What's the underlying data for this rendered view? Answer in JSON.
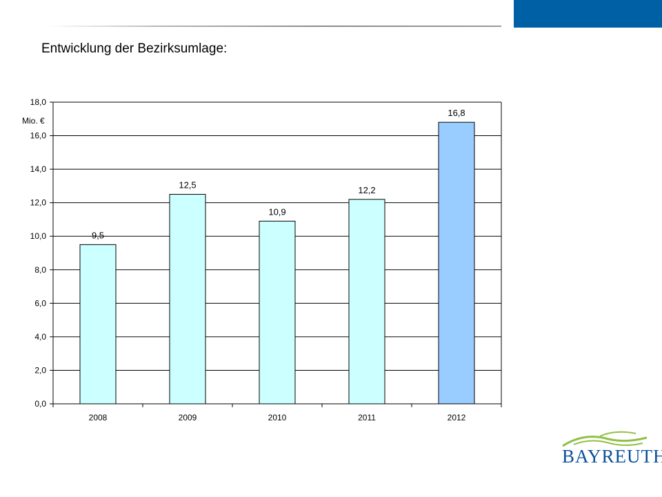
{
  "slide": {
    "title": "Entwicklung der Bezirksumlage:"
  },
  "colors": {
    "top_bar": "#0060a6",
    "bar_default": "#ccffff",
    "bar_highlight": "#99ccff",
    "logo_text": "#0a4f9a",
    "logo_hills": "#8fc045"
  },
  "chart_data": {
    "type": "bar",
    "title": "",
    "xlabel": "",
    "ylabel": "Mio. €",
    "categories": [
      "2008",
      "2009",
      "2010",
      "2011",
      "2012"
    ],
    "values": [
      9.5,
      12.5,
      10.9,
      12.2,
      16.8
    ],
    "value_labels": [
      "9,5",
      "12,5",
      "10,9",
      "12,2",
      "16,8"
    ],
    "highlight": [
      false,
      false,
      false,
      false,
      true
    ],
    "ylim": [
      0,
      18
    ],
    "yticks": [
      0,
      2,
      4,
      6,
      8,
      10,
      12,
      14,
      16,
      18
    ],
    "ytick_labels": [
      "0,0",
      "2,0",
      "4,0",
      "6,0",
      "8,0",
      "10,0",
      "12,0",
      "14,0",
      "16,0",
      "18,0"
    ],
    "grid": true,
    "legend": "none"
  },
  "logo": {
    "text": "BAYREUTH"
  }
}
